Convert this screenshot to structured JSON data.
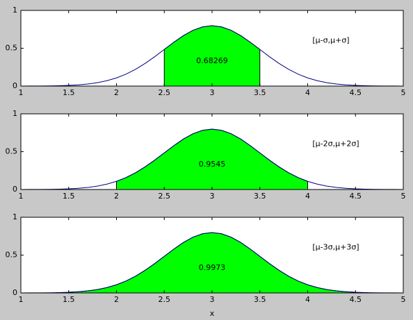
{
  "chart_data": [
    {
      "type": "area",
      "x": [
        1,
        1.1,
        1.2,
        1.3,
        1.4,
        1.5,
        1.6,
        1.7,
        1.8,
        1.9,
        2,
        2.1,
        2.2,
        2.3,
        2.4,
        2.5,
        2.6,
        2.7,
        2.8,
        2.9,
        3,
        3.1,
        3.2,
        3.3,
        3.4,
        3.5,
        3.6,
        3.7,
        3.8,
        3.9,
        4,
        4.1,
        4.2,
        4.3,
        4.4,
        4.5,
        4.6,
        4.7,
        4.8,
        4.9,
        5
      ],
      "values": [
        0,
        0.001,
        0.001,
        0.002,
        0.005,
        0.009,
        0.016,
        0.027,
        0.045,
        0.071,
        0.108,
        0.158,
        0.222,
        0.3,
        0.388,
        0.484,
        0.579,
        0.667,
        0.737,
        0.782,
        0.798,
        0.782,
        0.737,
        0.667,
        0.579,
        0.484,
        0.388,
        0.3,
        0.222,
        0.158,
        0.108,
        0.071,
        0.045,
        0.027,
        0.016,
        0.009,
        0.005,
        0.002,
        0.001,
        0.001,
        0
      ],
      "color": "#000080",
      "shade": [
        2.5,
        3.5
      ],
      "shade_color": "#00ff00",
      "area_label": "0.68269",
      "interval_label": "[μ-σ,μ+σ]",
      "xlim": [
        1,
        5
      ],
      "ylim": [
        0,
        1
      ],
      "xticks": [
        1,
        1.5,
        2,
        2.5,
        3,
        3.5,
        4,
        4.5,
        5
      ],
      "yticks": [
        0,
        0.5,
        1
      ]
    },
    {
      "type": "area",
      "x": [
        1,
        1.1,
        1.2,
        1.3,
        1.4,
        1.5,
        1.6,
        1.7,
        1.8,
        1.9,
        2,
        2.1,
        2.2,
        2.3,
        2.4,
        2.5,
        2.6,
        2.7,
        2.8,
        2.9,
        3,
        3.1,
        3.2,
        3.3,
        3.4,
        3.5,
        3.6,
        3.7,
        3.8,
        3.9,
        4,
        4.1,
        4.2,
        4.3,
        4.4,
        4.5,
        4.6,
        4.7,
        4.8,
        4.9,
        5
      ],
      "values": [
        0,
        0.001,
        0.001,
        0.002,
        0.005,
        0.009,
        0.016,
        0.027,
        0.045,
        0.071,
        0.108,
        0.158,
        0.222,
        0.3,
        0.388,
        0.484,
        0.579,
        0.667,
        0.737,
        0.782,
        0.798,
        0.782,
        0.737,
        0.667,
        0.579,
        0.484,
        0.388,
        0.3,
        0.222,
        0.158,
        0.108,
        0.071,
        0.045,
        0.027,
        0.016,
        0.009,
        0.005,
        0.002,
        0.001,
        0.001,
        0
      ],
      "color": "#000080",
      "shade": [
        2,
        4
      ],
      "shade_color": "#00ff00",
      "area_label": "0.9545",
      "interval_label": "[μ-2σ,μ+2σ]",
      "xlim": [
        1,
        5
      ],
      "ylim": [
        0,
        1
      ],
      "xticks": [
        1,
        1.5,
        2,
        2.5,
        3,
        3.5,
        4,
        4.5,
        5
      ],
      "yticks": [
        0,
        0.5,
        1
      ]
    },
    {
      "type": "area",
      "x": [
        1,
        1.1,
        1.2,
        1.3,
        1.4,
        1.5,
        1.6,
        1.7,
        1.8,
        1.9,
        2,
        2.1,
        2.2,
        2.3,
        2.4,
        2.5,
        2.6,
        2.7,
        2.8,
        2.9,
        3,
        3.1,
        3.2,
        3.3,
        3.4,
        3.5,
        3.6,
        3.7,
        3.8,
        3.9,
        4,
        4.1,
        4.2,
        4.3,
        4.4,
        4.5,
        4.6,
        4.7,
        4.8,
        4.9,
        5
      ],
      "values": [
        0,
        0.001,
        0.001,
        0.002,
        0.005,
        0.009,
        0.016,
        0.027,
        0.045,
        0.071,
        0.108,
        0.158,
        0.222,
        0.3,
        0.388,
        0.484,
        0.579,
        0.667,
        0.737,
        0.782,
        0.798,
        0.782,
        0.737,
        0.667,
        0.579,
        0.484,
        0.388,
        0.3,
        0.222,
        0.158,
        0.108,
        0.071,
        0.045,
        0.027,
        0.016,
        0.009,
        0.005,
        0.002,
        0.001,
        0.001,
        0
      ],
      "color": "#000080",
      "shade": [
        1.5,
        4.5
      ],
      "shade_color": "#00ff00",
      "area_label": "0.9973",
      "interval_label": "[μ-3σ,μ+3σ]",
      "xlim": [
        1,
        5
      ],
      "ylim": [
        0,
        1
      ],
      "xticks": [
        1,
        1.5,
        2,
        2.5,
        3,
        3.5,
        4,
        4.5,
        5
      ],
      "yticks": [
        0,
        0.5,
        1
      ],
      "xlabel": "x"
    }
  ]
}
